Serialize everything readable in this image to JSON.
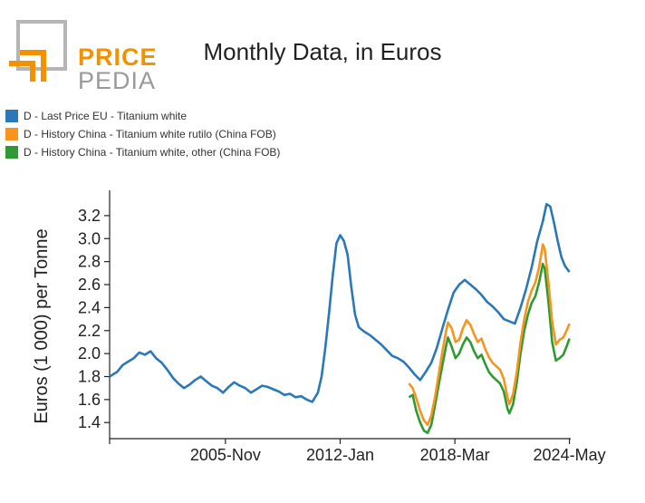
{
  "logo": {
    "word1": "PRICE",
    "word2": "PEDIA"
  },
  "colors": {
    "blue": "#2a78b6",
    "orange": "#f7941d",
    "green": "#2e9a33",
    "logo_orange": "#f39200",
    "logo_gray": "#9a9a9a"
  },
  "chart_data": {
    "type": "line",
    "title": "Monthly Data, in Euros",
    "xlabel": "",
    "ylabel": "Euros (1 000) per Tonne",
    "xlim": [
      1999.6,
      2024.4
    ],
    "ylim": [
      1.26,
      3.42
    ],
    "x_ticks": [
      {
        "x": 1999.6,
        "label": ""
      },
      {
        "x": 2005.83,
        "label": "2005-Nov"
      },
      {
        "x": 2012.0,
        "label": "2012-Jan"
      },
      {
        "x": 2018.17,
        "label": "2018-Mar"
      },
      {
        "x": 2024.33,
        "label": "2024-May"
      }
    ],
    "y_ticks": [
      1.4,
      1.6,
      1.8,
      2.0,
      2.2,
      2.4,
      2.6,
      2.8,
      3.0,
      3.2
    ],
    "y_tick_labels": [
      "1.4",
      "1.6",
      "1.8",
      "2.0",
      "2.2",
      "2.4",
      "2.6",
      "2.8",
      "3.0",
      "3.2"
    ],
    "legend_position": "top-left",
    "series": [
      {
        "name": "D - Last Price EU - Titanium white",
        "color": "#2a78b6",
        "points": [
          [
            1999.6,
            1.8
          ],
          [
            2000.0,
            1.84
          ],
          [
            2000.3,
            1.9
          ],
          [
            2000.6,
            1.93
          ],
          [
            2000.9,
            1.96
          ],
          [
            2001.2,
            2.01
          ],
          [
            2001.5,
            1.99
          ],
          [
            2001.8,
            2.02
          ],
          [
            2002.1,
            1.96
          ],
          [
            2002.4,
            1.92
          ],
          [
            2002.7,
            1.86
          ],
          [
            2003.0,
            1.79
          ],
          [
            2003.3,
            1.74
          ],
          [
            2003.6,
            1.7
          ],
          [
            2003.9,
            1.73
          ],
          [
            2004.2,
            1.77
          ],
          [
            2004.5,
            1.8
          ],
          [
            2004.8,
            1.76
          ],
          [
            2005.1,
            1.72
          ],
          [
            2005.4,
            1.7
          ],
          [
            2005.7,
            1.66
          ],
          [
            2006.0,
            1.71
          ],
          [
            2006.3,
            1.75
          ],
          [
            2006.6,
            1.72
          ],
          [
            2006.9,
            1.7
          ],
          [
            2007.2,
            1.66
          ],
          [
            2007.5,
            1.69
          ],
          [
            2007.8,
            1.72
          ],
          [
            2008.1,
            1.71
          ],
          [
            2008.4,
            1.69
          ],
          [
            2008.7,
            1.67
          ],
          [
            2009.0,
            1.64
          ],
          [
            2009.3,
            1.65
          ],
          [
            2009.6,
            1.62
          ],
          [
            2009.9,
            1.63
          ],
          [
            2010.2,
            1.6
          ],
          [
            2010.5,
            1.58
          ],
          [
            2010.8,
            1.66
          ],
          [
            2011.0,
            1.8
          ],
          [
            2011.2,
            2.05
          ],
          [
            2011.4,
            2.35
          ],
          [
            2011.6,
            2.68
          ],
          [
            2011.8,
            2.96
          ],
          [
            2012.0,
            3.03
          ],
          [
            2012.2,
            2.98
          ],
          [
            2012.4,
            2.86
          ],
          [
            2012.6,
            2.58
          ],
          [
            2012.8,
            2.34
          ],
          [
            2013.0,
            2.23
          ],
          [
            2013.3,
            2.19
          ],
          [
            2013.6,
            2.16
          ],
          [
            2013.9,
            2.12
          ],
          [
            2014.2,
            2.08
          ],
          [
            2014.5,
            2.03
          ],
          [
            2014.8,
            1.98
          ],
          [
            2015.1,
            1.96
          ],
          [
            2015.4,
            1.93
          ],
          [
            2015.7,
            1.88
          ],
          [
            2016.0,
            1.82
          ],
          [
            2016.3,
            1.77
          ],
          [
            2016.6,
            1.84
          ],
          [
            2016.9,
            1.92
          ],
          [
            2017.2,
            2.05
          ],
          [
            2017.5,
            2.22
          ],
          [
            2017.8,
            2.38
          ],
          [
            2018.1,
            2.53
          ],
          [
            2018.4,
            2.6
          ],
          [
            2018.7,
            2.64
          ],
          [
            2019.0,
            2.6
          ],
          [
            2019.3,
            2.56
          ],
          [
            2019.6,
            2.51
          ],
          [
            2019.9,
            2.45
          ],
          [
            2020.2,
            2.41
          ],
          [
            2020.5,
            2.36
          ],
          [
            2020.8,
            2.3
          ],
          [
            2021.1,
            2.28
          ],
          [
            2021.4,
            2.26
          ],
          [
            2021.7,
            2.4
          ],
          [
            2022.0,
            2.56
          ],
          [
            2022.3,
            2.75
          ],
          [
            2022.6,
            2.98
          ],
          [
            2022.9,
            3.15
          ],
          [
            2023.1,
            3.3
          ],
          [
            2023.3,
            3.28
          ],
          [
            2023.5,
            3.14
          ],
          [
            2023.7,
            2.98
          ],
          [
            2023.9,
            2.84
          ],
          [
            2024.1,
            2.76
          ],
          [
            2024.33,
            2.71
          ]
        ]
      },
      {
        "name": "D - History China - Titanium white rutilo (China FOB)",
        "color": "#f7941d",
        "points": [
          [
            2015.7,
            1.74
          ],
          [
            2015.9,
            1.7
          ],
          [
            2016.1,
            1.61
          ],
          [
            2016.3,
            1.5
          ],
          [
            2016.5,
            1.42
          ],
          [
            2016.7,
            1.38
          ],
          [
            2016.9,
            1.46
          ],
          [
            2017.1,
            1.62
          ],
          [
            2017.3,
            1.82
          ],
          [
            2017.5,
            2.02
          ],
          [
            2017.7,
            2.2
          ],
          [
            2017.8,
            2.27
          ],
          [
            2018.0,
            2.22
          ],
          [
            2018.2,
            2.1
          ],
          [
            2018.4,
            2.12
          ],
          [
            2018.6,
            2.22
          ],
          [
            2018.8,
            2.29
          ],
          [
            2019.0,
            2.25
          ],
          [
            2019.2,
            2.17
          ],
          [
            2019.4,
            2.1
          ],
          [
            2019.6,
            2.13
          ],
          [
            2019.8,
            2.04
          ],
          [
            2020.0,
            1.97
          ],
          [
            2020.2,
            1.92
          ],
          [
            2020.4,
            1.89
          ],
          [
            2020.6,
            1.86
          ],
          [
            2020.8,
            1.78
          ],
          [
            2021.0,
            1.62
          ],
          [
            2021.1,
            1.56
          ],
          [
            2021.3,
            1.65
          ],
          [
            2021.5,
            1.84
          ],
          [
            2021.7,
            2.1
          ],
          [
            2021.9,
            2.3
          ],
          [
            2022.1,
            2.45
          ],
          [
            2022.3,
            2.55
          ],
          [
            2022.5,
            2.62
          ],
          [
            2022.7,
            2.75
          ],
          [
            2022.9,
            2.95
          ],
          [
            2023.0,
            2.91
          ],
          [
            2023.2,
            2.62
          ],
          [
            2023.4,
            2.28
          ],
          [
            2023.6,
            2.08
          ],
          [
            2023.8,
            2.12
          ],
          [
            2024.0,
            2.14
          ],
          [
            2024.15,
            2.19
          ],
          [
            2024.33,
            2.26
          ]
        ]
      },
      {
        "name": "D - History China - Titanium white, other (China FOB)",
        "color": "#2e9a33",
        "points": [
          [
            2015.7,
            1.62
          ],
          [
            2015.9,
            1.64
          ],
          [
            2016.1,
            1.5
          ],
          [
            2016.3,
            1.4
          ],
          [
            2016.5,
            1.33
          ],
          [
            2016.7,
            1.31
          ],
          [
            2016.9,
            1.38
          ],
          [
            2017.1,
            1.55
          ],
          [
            2017.3,
            1.73
          ],
          [
            2017.5,
            1.9
          ],
          [
            2017.7,
            2.07
          ],
          [
            2017.8,
            2.14
          ],
          [
            2018.0,
            2.06
          ],
          [
            2018.2,
            1.96
          ],
          [
            2018.4,
            2.0
          ],
          [
            2018.6,
            2.08
          ],
          [
            2018.8,
            2.14
          ],
          [
            2019.0,
            2.1
          ],
          [
            2019.2,
            2.02
          ],
          [
            2019.4,
            1.96
          ],
          [
            2019.6,
            1.99
          ],
          [
            2019.8,
            1.91
          ],
          [
            2020.0,
            1.84
          ],
          [
            2020.2,
            1.8
          ],
          [
            2020.4,
            1.77
          ],
          [
            2020.6,
            1.74
          ],
          [
            2020.8,
            1.67
          ],
          [
            2021.0,
            1.52
          ],
          [
            2021.1,
            1.48
          ],
          [
            2021.3,
            1.56
          ],
          [
            2021.5,
            1.75
          ],
          [
            2021.7,
            2.0
          ],
          [
            2021.9,
            2.2
          ],
          [
            2022.1,
            2.34
          ],
          [
            2022.3,
            2.44
          ],
          [
            2022.5,
            2.5
          ],
          [
            2022.7,
            2.62
          ],
          [
            2022.9,
            2.78
          ],
          [
            2023.0,
            2.74
          ],
          [
            2023.2,
            2.45
          ],
          [
            2023.4,
            2.1
          ],
          [
            2023.6,
            1.94
          ],
          [
            2023.8,
            1.96
          ],
          [
            2024.0,
            1.99
          ],
          [
            2024.15,
            2.05
          ],
          [
            2024.33,
            2.13
          ]
        ]
      }
    ]
  }
}
